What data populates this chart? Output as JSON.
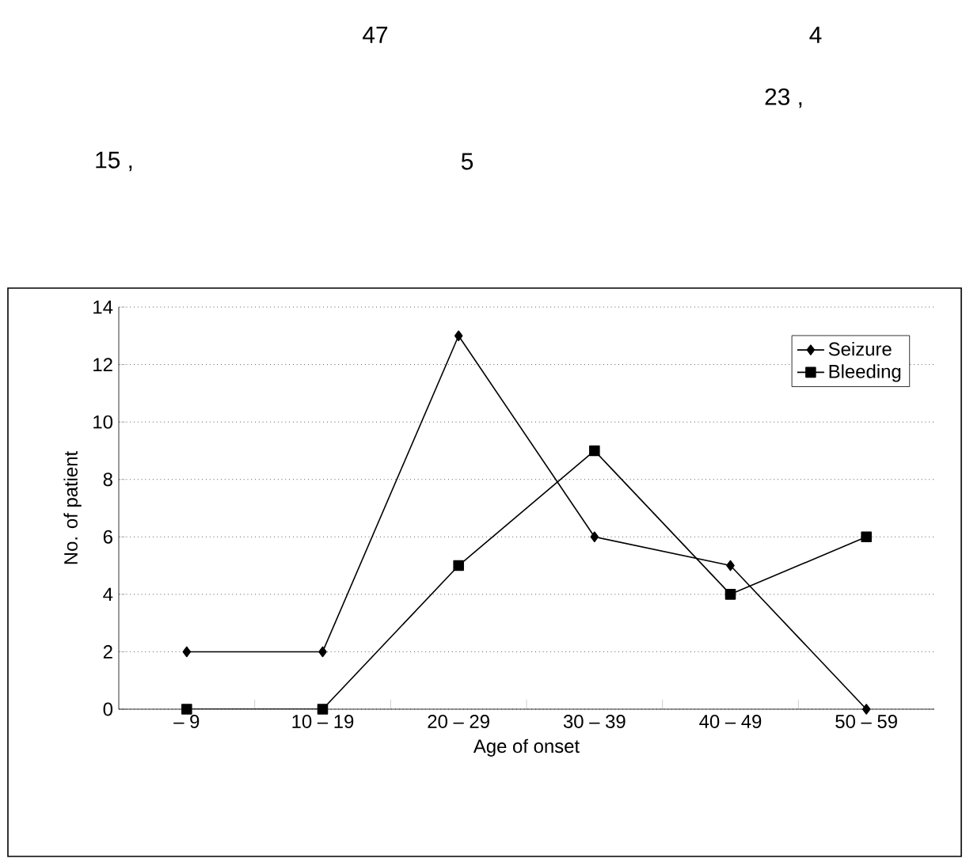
{
  "chart_data": {
    "type": "line",
    "annotations": [
      "47",
      "4",
      "23  ,",
      "15  ,",
      "5"
    ],
    "categories": [
      "– 9",
      "10 – 19",
      "20 – 29",
      "30 – 39",
      "40 – 49",
      "50 – 59"
    ],
    "series": [
      {
        "name": "Seizure",
        "color": "#000000",
        "marker": "diamond",
        "values": [
          2,
          2,
          13,
          6,
          5,
          0
        ]
      },
      {
        "name": "Bleeding",
        "color": "#000000",
        "marker": "square",
        "values": [
          0,
          0,
          5,
          9,
          4,
          6
        ]
      }
    ],
    "xlabel": "Age of onset",
    "ylabel": "No. of patient",
    "ylim": [
      0,
      14
    ],
    "yticks": [
      0,
      2,
      4,
      6,
      8,
      10,
      12,
      14
    ],
    "grid": "y",
    "legend": "top right",
    "line_style": "solid"
  }
}
